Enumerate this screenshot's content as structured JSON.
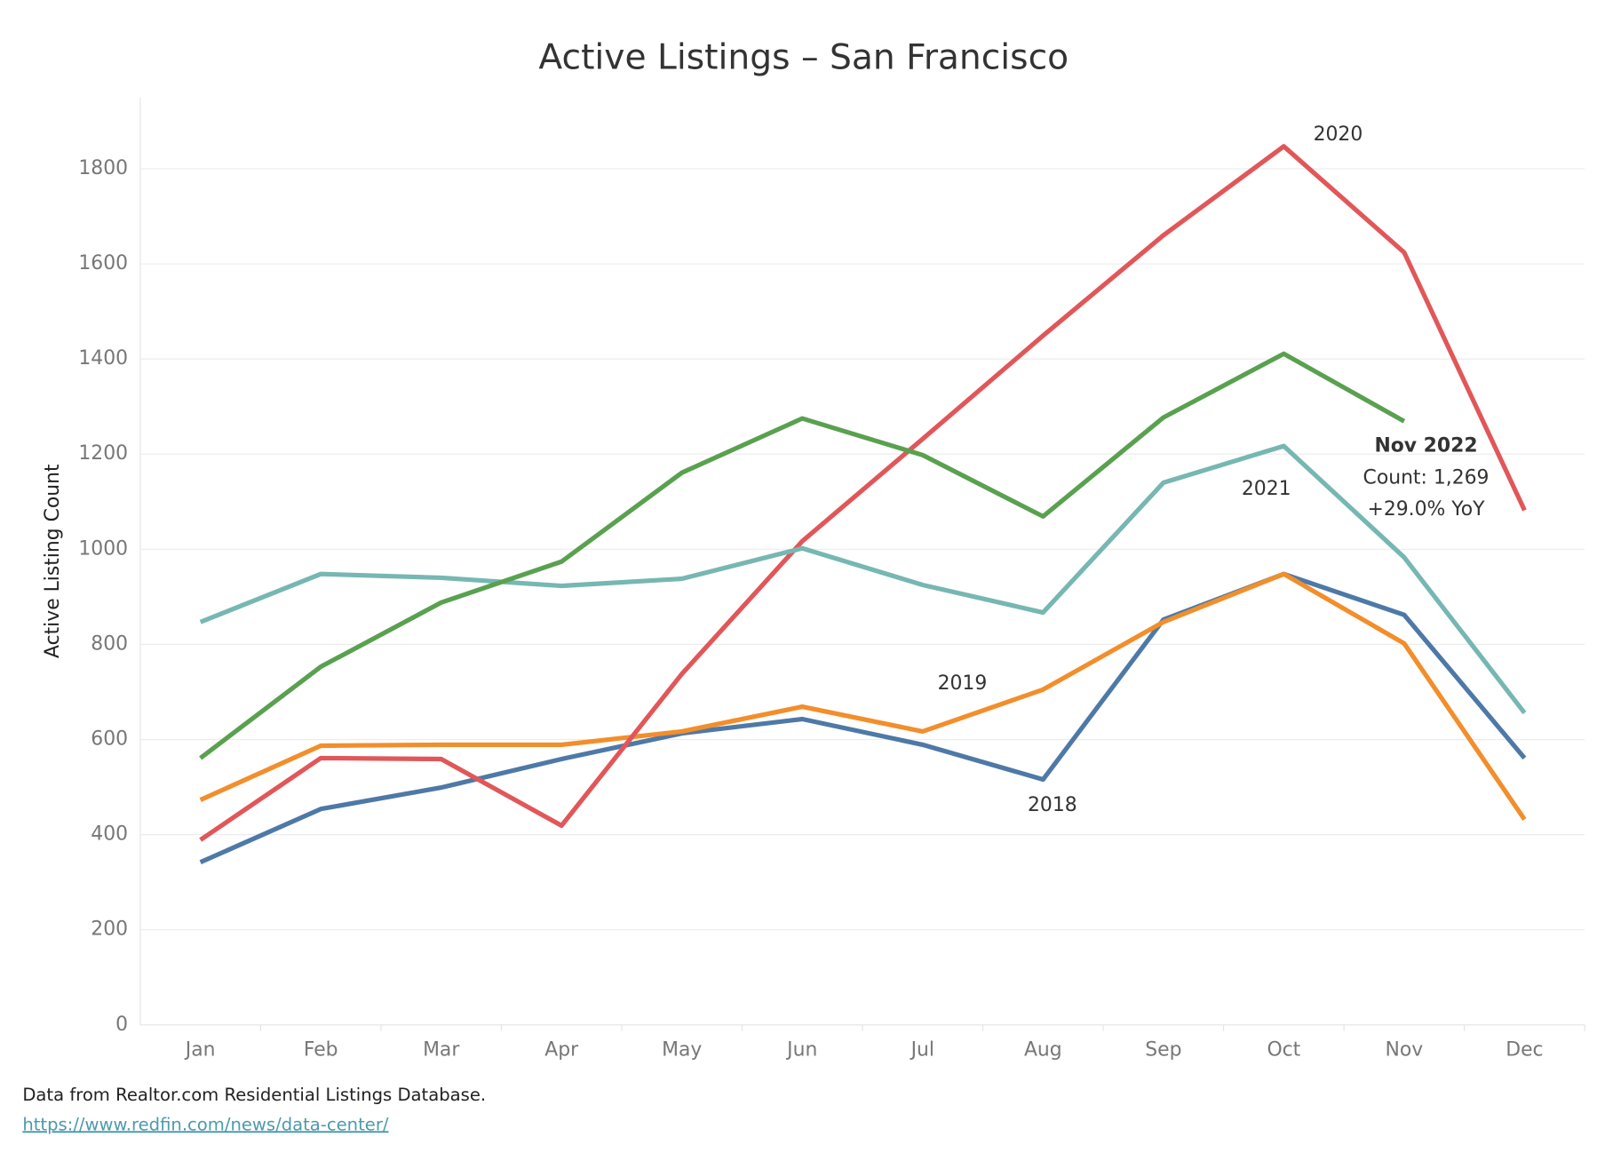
{
  "chart_data": {
    "type": "line",
    "title": "Active Listings – San Francisco",
    "y_label": "Active Listing Count",
    "categories": [
      "Jan",
      "Feb",
      "Mar",
      "Apr",
      "May",
      "Jun",
      "Jul",
      "Aug",
      "Sep",
      "Oct",
      "Nov",
      "Dec"
    ],
    "series": [
      {
        "name": "2018",
        "color": "#4e79a7",
        "values": [
          342,
          454,
          499,
          559,
          613,
          643,
          589,
          516,
          852,
          948,
          862,
          561
        ]
      },
      {
        "name": "2019",
        "color": "#f28e2b",
        "values": [
          473,
          587,
          589,
          589,
          617,
          669,
          617,
          705,
          847,
          948,
          802,
          432
        ]
      },
      {
        "name": "2020",
        "color": "#e15759",
        "values": [
          389,
          561,
          559,
          419,
          738,
          1017,
          1232,
          1449,
          1660,
          1847,
          1624,
          1082
        ]
      },
      {
        "name": "2021",
        "color": "#76b7b2",
        "values": [
          847,
          948,
          940,
          923,
          938,
          1002,
          925,
          867,
          1140,
          1217,
          983,
          656
        ]
      },
      {
        "name": "2022",
        "color": "#59a14f",
        "values": [
          561,
          753,
          888,
          974,
          1161,
          1275,
          1198,
          1069,
          1277,
          1411,
          1269,
          null
        ]
      }
    ],
    "annotation": [
      "Nov 2022",
      "Count: 1,269",
      "+29.0% YoY"
    ],
    "ylim": [
      0,
      1950
    ],
    "yticks": [
      0,
      200,
      400,
      600,
      800,
      1000,
      1200,
      1400,
      1600,
      1800
    ],
    "grid": true,
    "source": "Data from Realtor.com Residential Listings Database.",
    "source_link": "https://www.redfin.com/news/data-center/"
  }
}
